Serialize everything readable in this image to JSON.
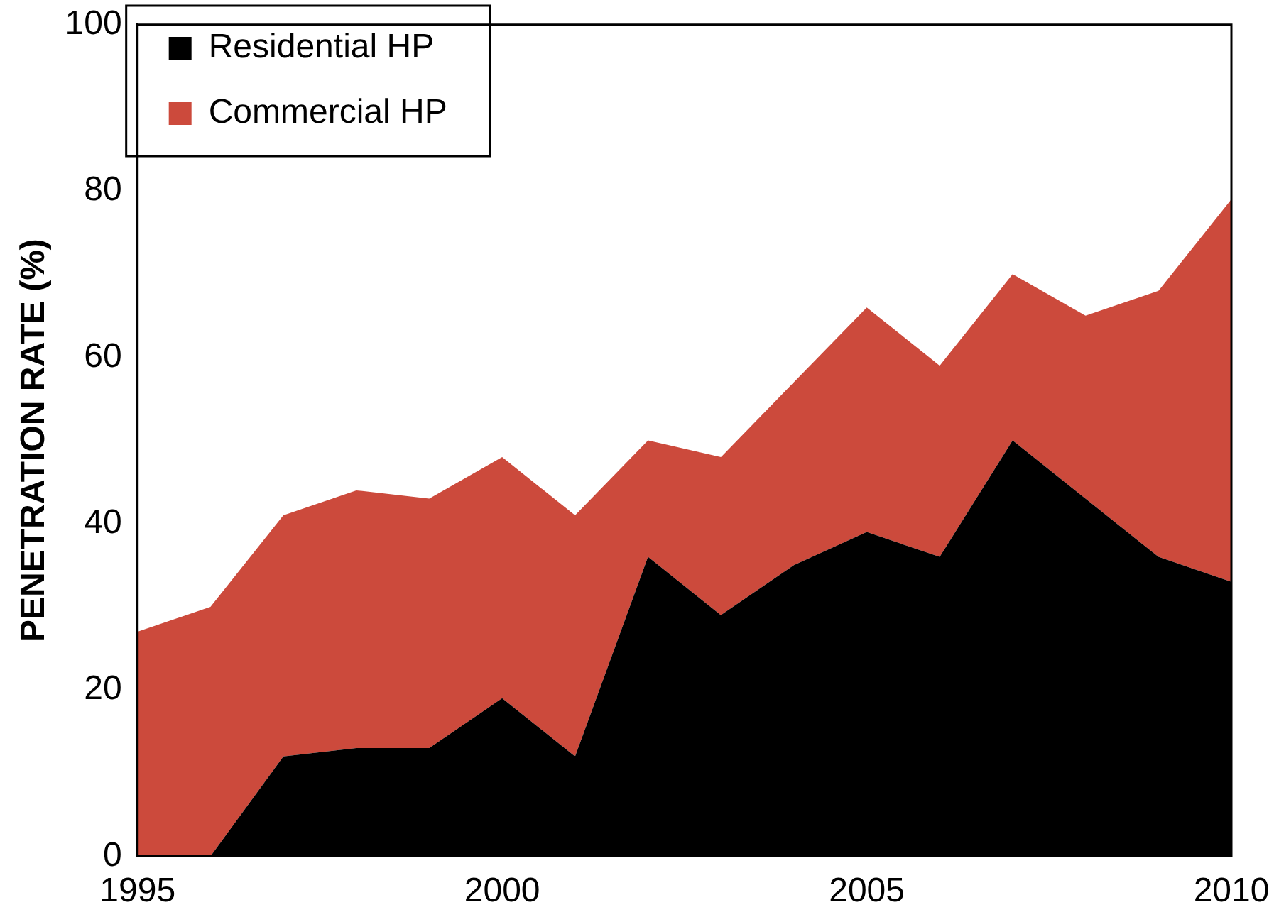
{
  "chart_data": {
    "type": "area",
    "ylabel": "PENETRATION RATE (%)",
    "stacked": true,
    "x": [
      1995,
      1996,
      1997,
      1998,
      1999,
      2000,
      2001,
      2002,
      2003,
      2004,
      2005,
      2006,
      2007,
      2008,
      2009,
      2010
    ],
    "series": [
      {
        "name": "Residential HP",
        "color": "#000000",
        "values": [
          0,
          0,
          12,
          13,
          13,
          19,
          12,
          36,
          29,
          35,
          39,
          36,
          50,
          43,
          36,
          33
        ]
      },
      {
        "name": "Commercial HP",
        "color": "#cc4a3c",
        "values": [
          27,
          30,
          29,
          31,
          30,
          29,
          29,
          14,
          19,
          22,
          27,
          23,
          20,
          22,
          32,
          46
        ]
      }
    ],
    "xlim": [
      1995,
      2010
    ],
    "xticks": [
      1995,
      2000,
      2005,
      2010
    ],
    "ylim": [
      0,
      100
    ],
    "yticks": [
      0,
      20,
      40,
      60,
      80,
      100
    ],
    "grid": false,
    "legend": "top left"
  }
}
